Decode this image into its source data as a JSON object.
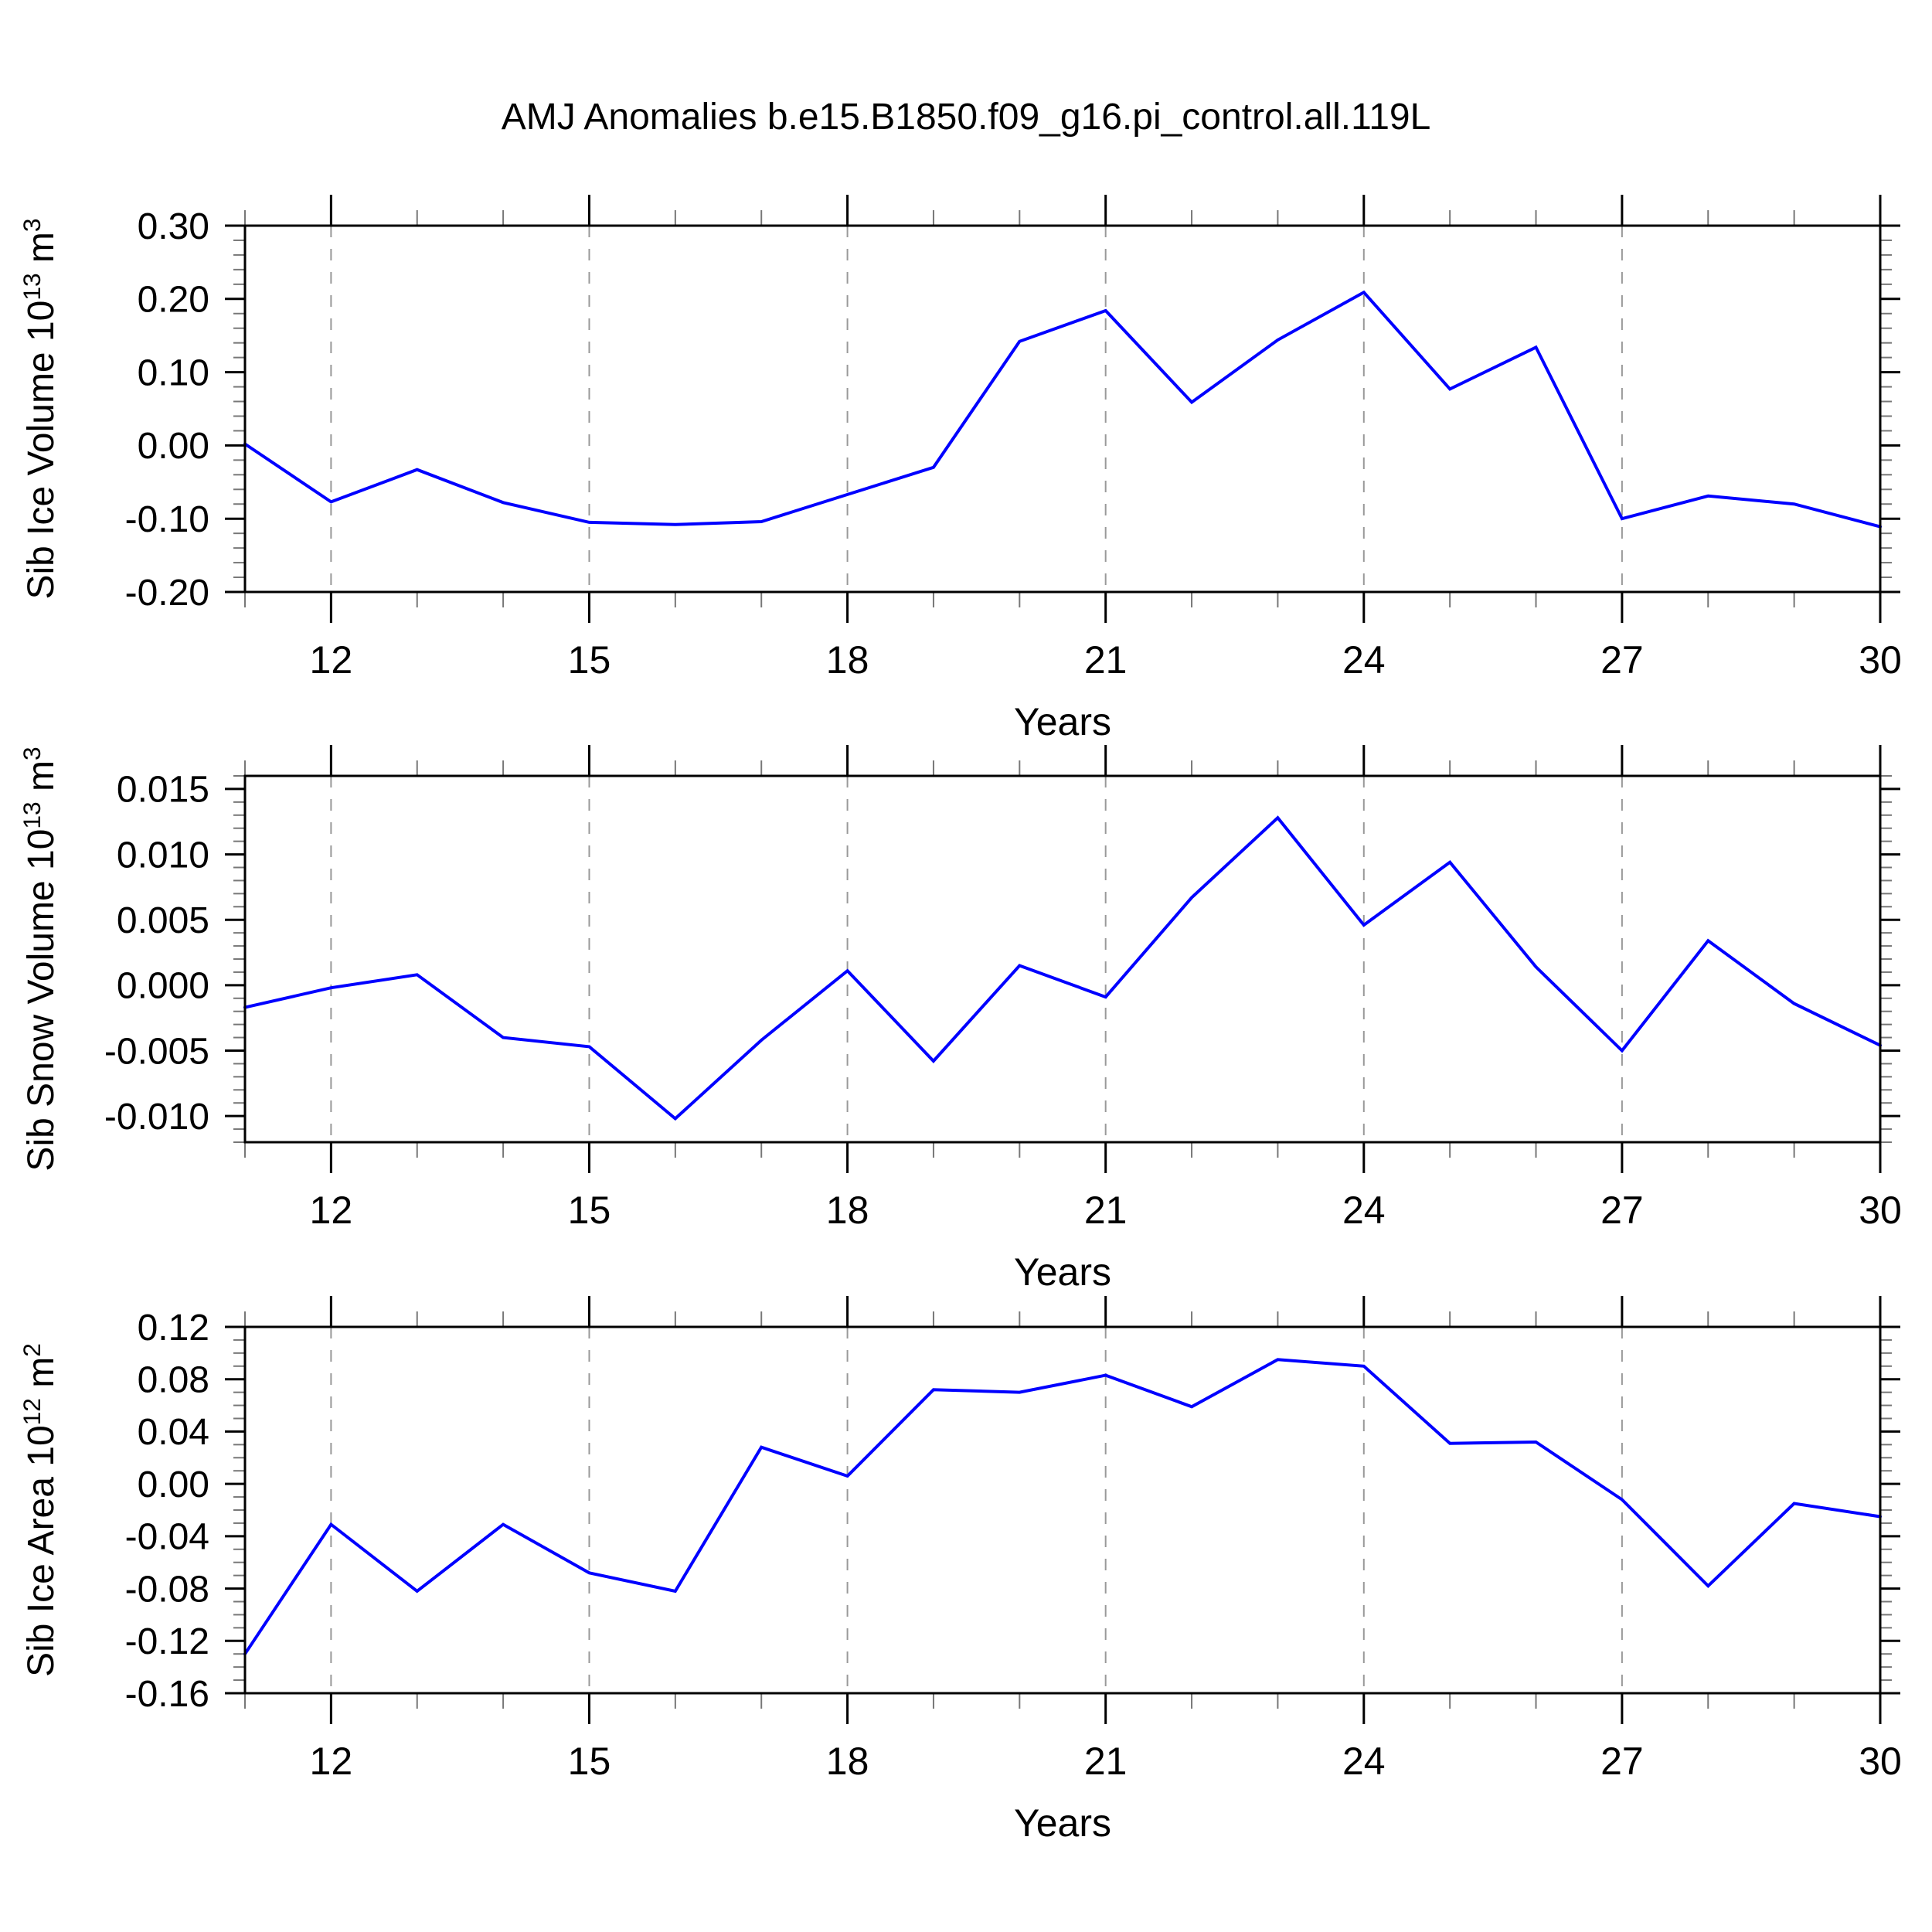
{
  "title": "AMJ Anomalies b.e15.B1850.f09_g16.pi_control.all.119L",
  "colors": {
    "line": "#0000ff",
    "axis": "#000000",
    "minor_tick": "#777777",
    "gridline": "#999999",
    "background": "#ffffff"
  },
  "x_axis": {
    "label": "Years",
    "min": 11,
    "max": 30,
    "major_ticks": [
      12,
      15,
      18,
      21,
      24,
      27,
      30
    ],
    "major_tick_labels": [
      "12",
      "15",
      "18",
      "21",
      "24",
      "27",
      "30"
    ],
    "minor_step": 1,
    "gridline_years": [
      12,
      15,
      18,
      21,
      24,
      27
    ]
  },
  "chart_data": [
    {
      "type": "line",
      "panel": 1,
      "ylabel": "Sib Ice Volume 10^13 m^3",
      "ylabel_parts": [
        {
          "t": "Sib Ice Volume 10"
        },
        {
          "sup": "13"
        },
        {
          "t": " m"
        },
        {
          "sup": "3"
        }
      ],
      "xlabel": "Years",
      "ylim": [
        -0.2,
        0.3
      ],
      "yticks": [
        {
          "v": 0.3,
          "label": "0.30"
        },
        {
          "v": 0.2,
          "label": "0.20"
        },
        {
          "v": 0.1,
          "label": "0.10"
        },
        {
          "v": 0.0,
          "label": "0.00"
        },
        {
          "v": -0.1,
          "label": "-0.10"
        },
        {
          "v": -0.2,
          "label": "-0.20"
        }
      ],
      "yminor_step": 0.02,
      "ymajor_step": 0.1,
      "grid": "vertical-dashed",
      "legend": "none",
      "x": [
        11,
        12,
        13,
        14,
        15,
        16,
        17,
        18,
        19,
        20,
        21,
        22,
        23,
        24,
        25,
        26,
        27,
        28,
        29,
        30
      ],
      "values": [
        0.002,
        -0.077,
        -0.033,
        -0.078,
        -0.105,
        -0.108,
        -0.104,
        -0.067,
        -0.03,
        0.142,
        0.184,
        0.059,
        0.144,
        0.209,
        0.077,
        0.134,
        -0.1,
        -0.069,
        -0.08,
        -0.111
      ]
    },
    {
      "type": "line",
      "panel": 2,
      "ylabel": "Sib Snow Volume 10^13 m^3",
      "ylabel_parts": [
        {
          "t": "Sib Snow Volume 10"
        },
        {
          "sup": "13"
        },
        {
          "t": " m"
        },
        {
          "sup": "3"
        }
      ],
      "xlabel": "Years",
      "ylim": [
        -0.012,
        0.016
      ],
      "yticks": [
        {
          "v": 0.015,
          "label": "0.015"
        },
        {
          "v": 0.01,
          "label": "0.010"
        },
        {
          "v": 0.005,
          "label": "0.005"
        },
        {
          "v": 0.0,
          "label": "0.000"
        },
        {
          "v": -0.005,
          "label": "-0.005"
        },
        {
          "v": -0.01,
          "label": "-0.010"
        }
      ],
      "yminor_step": 0.001,
      "ymajor_step": 0.005,
      "grid": "vertical-dashed",
      "legend": "none",
      "x": [
        11,
        12,
        13,
        14,
        15,
        16,
        17,
        18,
        19,
        20,
        21,
        22,
        23,
        24,
        25,
        26,
        27,
        28,
        29,
        30
      ],
      "values": [
        -0.0017,
        -0.0002,
        0.0008,
        -0.004,
        -0.0047,
        -0.0102,
        -0.0042,
        0.0011,
        -0.0058,
        0.0015,
        -0.0009,
        0.0067,
        0.0128,
        0.0046,
        0.0094,
        0.0014,
        -0.005,
        0.0034,
        -0.0014,
        -0.0046
      ]
    },
    {
      "type": "line",
      "panel": 3,
      "ylabel": "Sib Ice Area 10^12 m^2",
      "ylabel_parts": [
        {
          "t": "Sib Ice Area 10"
        },
        {
          "sup": "12"
        },
        {
          "t": " m"
        },
        {
          "sup": "2"
        }
      ],
      "xlabel": "Years",
      "ylim": [
        -0.16,
        0.12
      ],
      "yticks": [
        {
          "v": 0.12,
          "label": "0.12"
        },
        {
          "v": 0.08,
          "label": "0.08"
        },
        {
          "v": 0.04,
          "label": "0.04"
        },
        {
          "v": 0.0,
          "label": "0.00"
        },
        {
          "v": -0.04,
          "label": "-0.04"
        },
        {
          "v": -0.08,
          "label": "-0.08"
        },
        {
          "v": -0.12,
          "label": "-0.12"
        },
        {
          "v": -0.16,
          "label": "-0.16"
        }
      ],
      "yminor_step": 0.01,
      "ymajor_step": 0.04,
      "grid": "vertical-dashed",
      "legend": "none",
      "x": [
        11,
        12,
        13,
        14,
        15,
        16,
        17,
        18,
        19,
        20,
        21,
        22,
        23,
        24,
        25,
        26,
        27,
        28,
        29,
        30
      ],
      "values": [
        -0.13,
        -0.031,
        -0.082,
        -0.031,
        -0.068,
        -0.082,
        0.028,
        0.006,
        0.072,
        0.07,
        0.083,
        0.059,
        0.095,
        0.09,
        0.031,
        0.032,
        -0.012,
        -0.078,
        -0.015,
        -0.025
      ]
    }
  ]
}
